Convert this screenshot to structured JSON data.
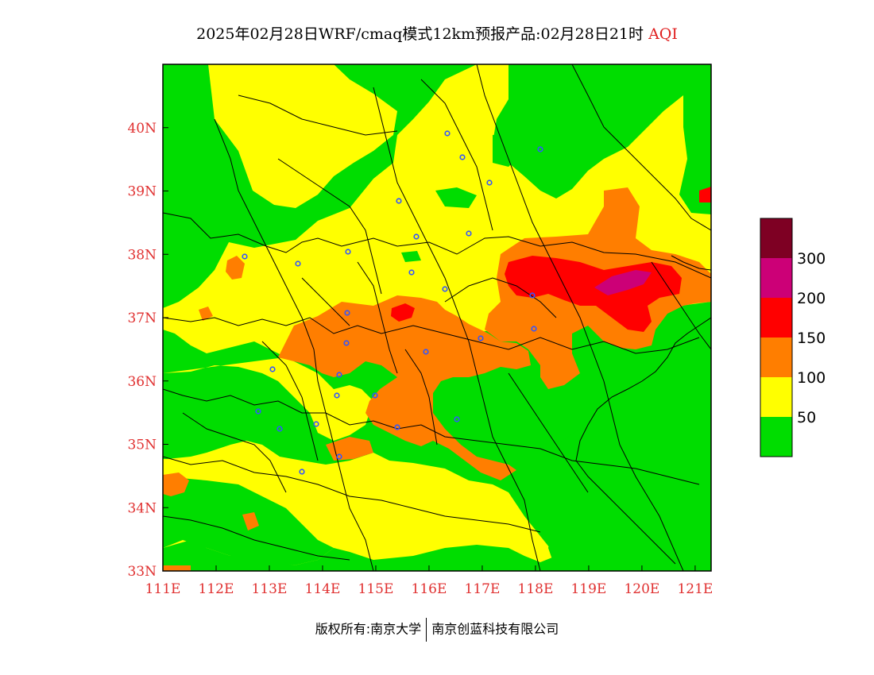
{
  "title": {
    "main": "2025年02月28日WRF/cmaq模式12km预报产品:02月28日21时",
    "product": "AQI"
  },
  "axes": {
    "x_ticks": [
      "111E",
      "112E",
      "113E",
      "114E",
      "115E",
      "116E",
      "117E",
      "118E",
      "119E",
      "120E",
      "121E"
    ],
    "y_ticks": [
      "33N",
      "34N",
      "35N",
      "36N",
      "37N",
      "38N",
      "39N",
      "40N"
    ],
    "lon_range": [
      111,
      121.3
    ],
    "lat_range": [
      33,
      41
    ]
  },
  "legend": {
    "labels": [
      "50",
      "100",
      "150",
      "200",
      "300"
    ],
    "colors": [
      "#00dd00",
      "#ffff00",
      "#ff7e00",
      "#ff0000",
      "#cc0077",
      "#7e0023"
    ]
  },
  "copyright": {
    "left": "版权所有:南京大学",
    "right": "南京创蓝科技有限公司"
  },
  "colors": {
    "good": "#00dd00",
    "moderate": "#ffff00",
    "usg": "#ff7e00",
    "unhealthy": "#ff0000",
    "very_unhealthy": "#cc0077",
    "hazardous": "#7e0023",
    "tick_text": "#e03030",
    "city_marker": "#3355ff"
  }
}
